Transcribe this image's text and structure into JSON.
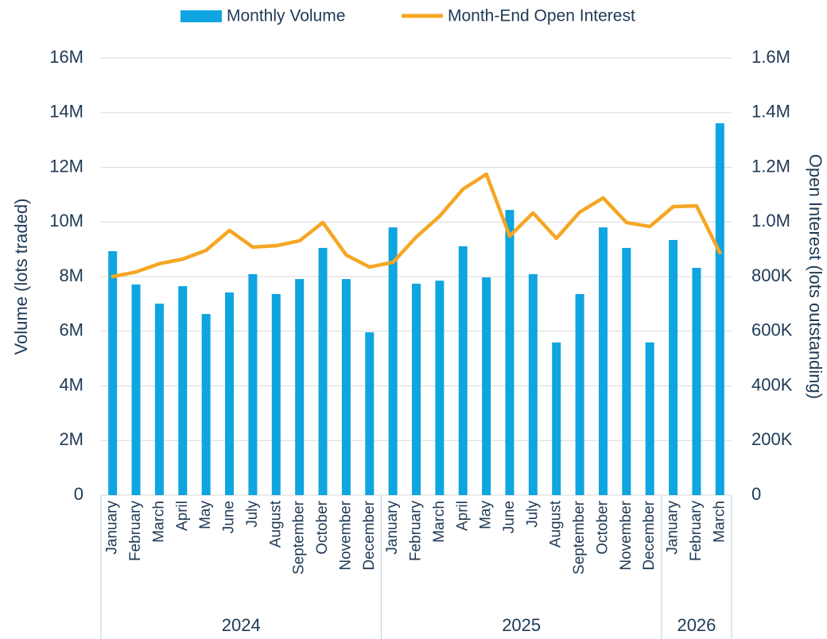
{
  "chart_data": {
    "type": "bar_line",
    "groups": [
      {
        "label": "2024",
        "categories": [
          "January",
          "February",
          "March",
          "April",
          "May",
          "June",
          "July",
          "August",
          "September",
          "October",
          "November",
          "December"
        ]
      },
      {
        "label": "2025",
        "categories": [
          "January",
          "February",
          "March",
          "April",
          "May",
          "June",
          "July",
          "August",
          "September",
          "October",
          "November",
          "December"
        ]
      },
      {
        "label": "2026",
        "categories": [
          "January",
          "February",
          "March"
        ]
      }
    ],
    "series": [
      {
        "name": "Monthly Volume",
        "type": "bar",
        "color": "#0ea5e0",
        "axis": "y",
        "values": [
          8930000,
          7710000,
          7010000,
          7650000,
          6630000,
          7420000,
          8090000,
          7360000,
          7910000,
          9050000,
          7910000,
          5960000,
          9800000,
          7740000,
          7850000,
          9110000,
          7970000,
          10440000,
          8090000,
          5590000,
          7360000,
          9800000,
          9050000,
          5590000,
          9340000,
          8320000,
          13610000
        ]
      },
      {
        "name": "Month-End Open Interest",
        "type": "line",
        "color": "#f5a623",
        "axis": "y2",
        "values": [
          800000,
          817000,
          847000,
          864000,
          896000,
          969000,
          908000,
          913000,
          931000,
          998000,
          879000,
          835000,
          852000,
          945000,
          1021000,
          1120000,
          1175000,
          948000,
          1033000,
          940000,
          1036000,
          1088000,
          998000,
          983000,
          1056000,
          1059000,
          887000
        ]
      }
    ],
    "ylabel": "Volume (lots traded)",
    "y2label": "Open Interest (lots outstanding)",
    "ylim": [
      0,
      16000000
    ],
    "yticks": [
      0,
      {
        "value": 2000000,
        "label": "2M"
      },
      {
        "value": 4000000,
        "label": "4M"
      },
      {
        "value": 6000000,
        "label": "6M"
      },
      {
        "value": 8000000,
        "label": "8M"
      },
      {
        "value": 10000000,
        "label": "10M"
      },
      {
        "value": 12000000,
        "label": "12M"
      },
      {
        "value": 14000000,
        "label": "14M"
      },
      {
        "value": 16000000,
        "label": "16M"
      }
    ],
    "y2lim": [
      0,
      1600000
    ],
    "y2ticks": [
      0,
      {
        "value": 200000,
        "label": "200K"
      },
      {
        "value": 400000,
        "label": "400K"
      },
      {
        "value": 600000,
        "label": "600K"
      },
      {
        "value": 800000,
        "label": "800K"
      },
      {
        "value": 1000000,
        "label": "1.0M"
      },
      {
        "value": 1200000,
        "label": "1.2M"
      },
      {
        "value": 1400000,
        "label": "1.4M"
      },
      {
        "value": 1600000,
        "label": "1.6M"
      }
    ],
    "grid": true,
    "legend": "top"
  }
}
